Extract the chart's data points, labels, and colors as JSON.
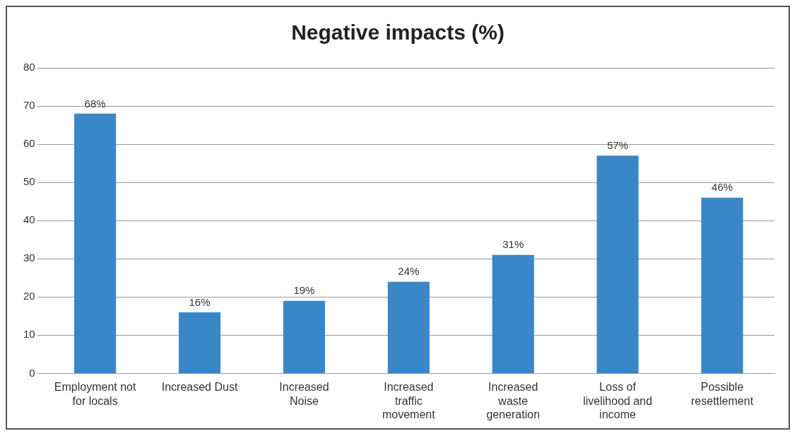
{
  "chart_data": {
    "type": "bar",
    "title": "Negative impacts (%)",
    "categories": [
      "Employment not for locals",
      "Increased Dust",
      "Increased Noise",
      "Increased traffic movement",
      "Increased waste generation",
      "Loss of livelihood and income",
      "Possible resettlement"
    ],
    "values": [
      68,
      16,
      19,
      24,
      31,
      57,
      46
    ],
    "value_labels": [
      "68%",
      "16%",
      "19%",
      "24%",
      "31%",
      "57%",
      "46%"
    ],
    "color": "#3a87c8",
    "ylim": [
      0,
      80
    ],
    "yticks": [
      0,
      10,
      20,
      30,
      40,
      50,
      60,
      70,
      80
    ],
    "grid": "y",
    "legend": false
  }
}
